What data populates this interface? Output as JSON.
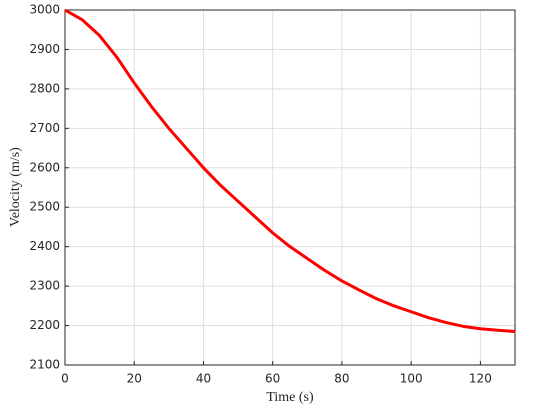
{
  "chart_data": {
    "type": "line",
    "xlabel": "Time (s)",
    "ylabel": "Velocity (m/s)",
    "x": [
      0,
      5,
      10,
      15,
      20,
      25,
      30,
      35,
      40,
      45,
      50,
      55,
      60,
      65,
      70,
      75,
      80,
      85,
      90,
      95,
      100,
      105,
      110,
      115,
      120,
      125,
      130
    ],
    "series": [
      {
        "name": "Velocity",
        "color": "#ff0000",
        "values": [
          3000,
          2975,
          2935,
          2880,
          2815,
          2755,
          2700,
          2650,
          2600,
          2555,
          2515,
          2475,
          2435,
          2400,
          2370,
          2340,
          2313,
          2290,
          2268,
          2250,
          2235,
          2220,
          2208,
          2198,
          2192,
          2188,
          2185
        ]
      }
    ],
    "xlim": [
      0,
      130
    ],
    "ylim": [
      2100,
      3000
    ],
    "xticks": [
      0,
      20,
      40,
      60,
      80,
      100,
      120
    ],
    "yticks": [
      2100,
      2200,
      2300,
      2400,
      2500,
      2600,
      2700,
      2800,
      2900,
      3000
    ],
    "grid": true
  }
}
